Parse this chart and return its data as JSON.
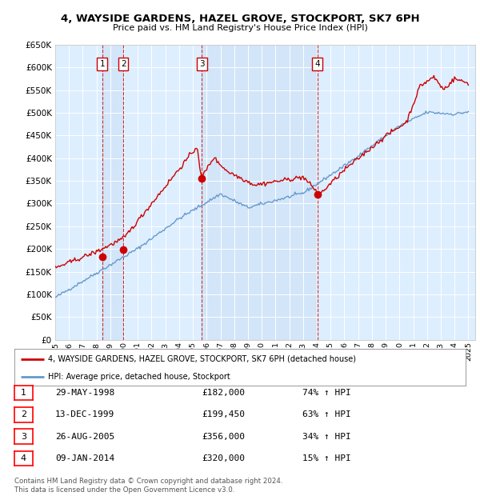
{
  "title1": "4, WAYSIDE GARDENS, HAZEL GROVE, STOCKPORT, SK7 6PH",
  "title2": "Price paid vs. HM Land Registry's House Price Index (HPI)",
  "ylim": [
    0,
    650000
  ],
  "yticks": [
    0,
    50000,
    100000,
    150000,
    200000,
    250000,
    300000,
    350000,
    400000,
    450000,
    500000,
    550000,
    600000,
    650000
  ],
  "xlim_start": 1995,
  "xlim_end": 2025.5,
  "sales": [
    {
      "label": "1",
      "date": "29-MAY-1998",
      "price": 182000,
      "pct": "74%",
      "x_year": 1998.41
    },
    {
      "label": "2",
      "date": "13-DEC-1999",
      "price": 199450,
      "pct": "63%",
      "x_year": 1999.95
    },
    {
      "label": "3",
      "date": "26-AUG-2005",
      "price": 356000,
      "pct": "34%",
      "x_year": 2005.65
    },
    {
      "label": "4",
      "date": "09-JAN-2014",
      "price": 320000,
      "pct": "15%",
      "x_year": 2014.03
    }
  ],
  "legend_line1": "4, WAYSIDE GARDENS, HAZEL GROVE, STOCKPORT, SK7 6PH (detached house)",
  "legend_line2": "HPI: Average price, detached house, Stockport",
  "footer": "Contains HM Land Registry data © Crown copyright and database right 2024.\nThis data is licensed under the Open Government Licence v3.0.",
  "line_color_red": "#cc0000",
  "line_color_blue": "#6699cc",
  "bg_color": "#ddeeff",
  "bg_shade_color": "#cce0f5",
  "grid_color": "#ffffff",
  "vline_color": "#cc0000",
  "label_box_color": "#cc0000"
}
